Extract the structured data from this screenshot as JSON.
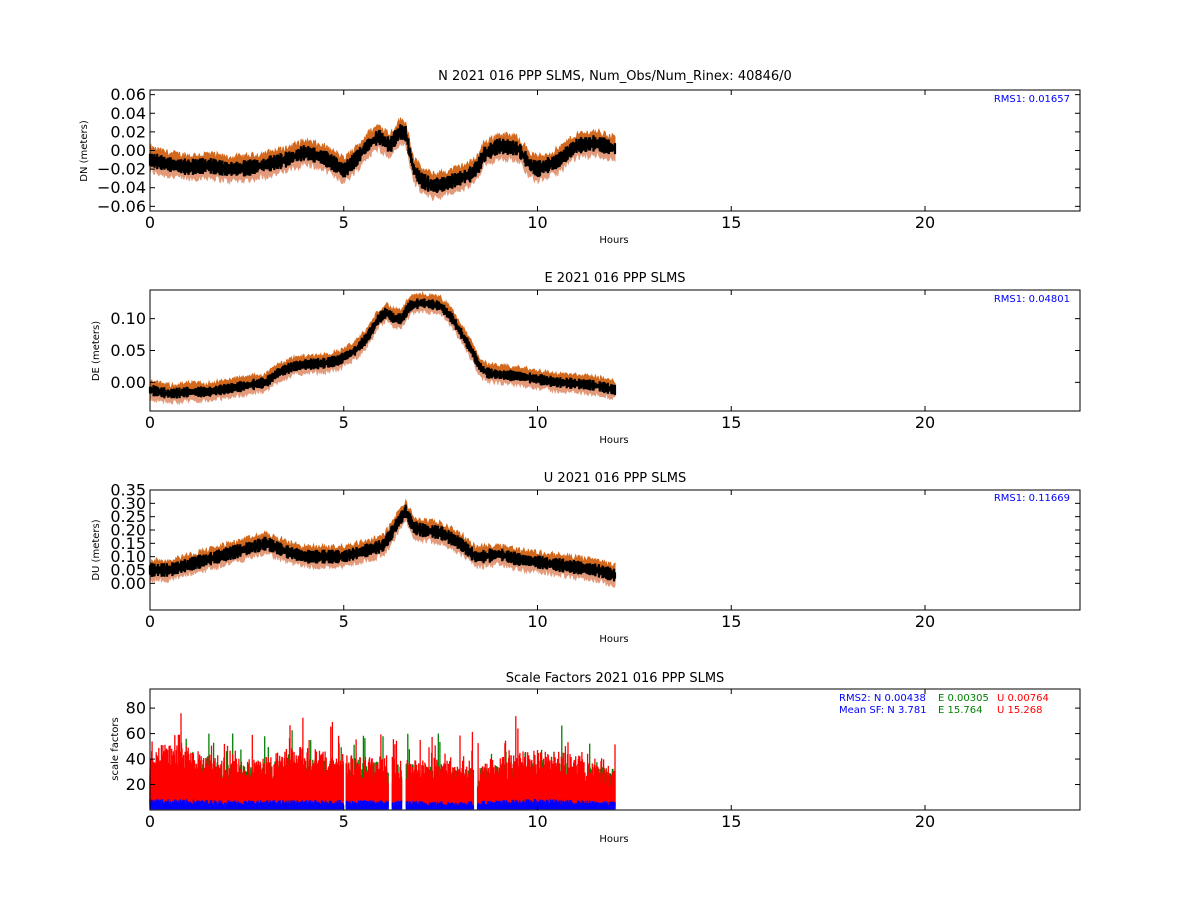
{
  "colors": {
    "upper_band": "#d2691e",
    "lower_band": "#e29a7a",
    "center": "#000000",
    "rms": "#0000ff",
    "sf_n": "#0000ff",
    "sf_e": "#008000",
    "sf_u": "#ff0000"
  },
  "chart_data": [
    {
      "type": "scatter",
      "title": "N 2021 016 PPP  SLMS, Num_Obs/Num_Rinex: 40846/0",
      "xlabel": "Hours",
      "ylabel": "DN (meters)",
      "xlim": [
        0,
        24
      ],
      "ylim": [
        -0.065,
        0.065
      ],
      "xticks": [
        0,
        5,
        10,
        15,
        20
      ],
      "yticks": [
        "0.06",
        "0.04",
        "0.02",
        "0.00",
        "−0.02",
        "−0.04",
        "−0.06"
      ],
      "ytick_values": [
        0.06,
        0.04,
        0.02,
        0.0,
        -0.02,
        -0.04,
        -0.06
      ],
      "annotation": "RMS1:  0.01657",
      "band": 0.012,
      "noise": 0.004,
      "series": [
        {
          "x": [
            0,
            0.5,
            1,
            1.5,
            2,
            2.5,
            3,
            3.5,
            4,
            4.5,
            4.9,
            5.0,
            5.3,
            5.6,
            5.9,
            6.2,
            6.3,
            6.45,
            6.6,
            6.8,
            7.0,
            7.3,
            7.6,
            8.0,
            8.3,
            8.5,
            8.6,
            9.0,
            9.5,
            9.8,
            10.0,
            10.5,
            11.0,
            11.5,
            12.0
          ],
          "y": [
            -0.01,
            -0.015,
            -0.018,
            -0.016,
            -0.02,
            -0.019,
            -0.015,
            -0.01,
            -0.002,
            -0.008,
            -0.018,
            -0.022,
            -0.01,
            0.005,
            0.015,
            0.005,
            0.012,
            0.02,
            0.018,
            -0.02,
            -0.032,
            -0.038,
            -0.036,
            -0.03,
            -0.025,
            -0.015,
            -0.005,
            0.005,
            0.002,
            -0.015,
            -0.02,
            -0.012,
            0.005,
            0.008,
            0.002
          ]
        }
      ]
    },
    {
      "type": "scatter",
      "title": "E 2021 016 PPP  SLMS",
      "xlabel": "Hours",
      "ylabel": "DE (meters)",
      "xlim": [
        0,
        24
      ],
      "ylim": [
        -0.045,
        0.145
      ],
      "xticks": [
        0,
        5,
        10,
        15,
        20
      ],
      "yticks": [
        "0.10",
        "0.05",
        "0.00"
      ],
      "ytick_values": [
        0.1,
        0.05,
        0.0
      ],
      "annotation": "RMS1:  0.04801",
      "band": 0.013,
      "noise": 0.004,
      "series": [
        {
          "x": [
            0,
            0.5,
            1,
            1.5,
            2,
            2.5,
            3,
            3.3,
            3.7,
            4,
            4.5,
            4.9,
            5.0,
            5.3,
            5.6,
            5.9,
            6.1,
            6.3,
            6.5,
            6.7,
            7.0,
            7.5,
            7.8,
            8.0,
            8.3,
            8.5,
            8.7,
            9.0,
            9.5,
            10.0,
            10.5,
            11.0,
            11.5,
            12.0
          ],
          "y": [
            -0.012,
            -0.018,
            -0.015,
            -0.015,
            -0.01,
            -0.005,
            0.0,
            0.015,
            0.025,
            0.028,
            0.03,
            0.035,
            0.04,
            0.05,
            0.07,
            0.1,
            0.11,
            0.1,
            0.1,
            0.12,
            0.125,
            0.12,
            0.1,
            0.08,
            0.05,
            0.025,
            0.015,
            0.012,
            0.01,
            0.005,
            0.0,
            -0.002,
            -0.005,
            -0.012
          ]
        }
      ]
    },
    {
      "type": "scatter",
      "title": "U 2021 016 PPP  SLMS",
      "xlabel": "Hours",
      "ylabel": "DU (meters)",
      "xlim": [
        0,
        24
      ],
      "ylim": [
        -0.1,
        0.35
      ],
      "xticks": [
        0,
        5,
        10,
        15,
        20
      ],
      "yticks": [
        "0.35",
        "0.30",
        "0.25",
        "0.20",
        "0.15",
        "0.10",
        "0.05",
        "0.00"
      ],
      "ytick_values": [
        0.35,
        0.3,
        0.25,
        0.2,
        0.15,
        0.1,
        0.05,
        0.0
      ],
      "annotation": "RMS1:  0.11669",
      "band": 0.035,
      "noise": 0.012,
      "series": [
        {
          "x": [
            0,
            0.5,
            1,
            1.5,
            2,
            2.5,
            3,
            3.5,
            4,
            4.5,
            4.9,
            5.0,
            5.5,
            6.0,
            6.2,
            6.4,
            6.6,
            6.8,
            7.0,
            7.5,
            8.0,
            8.4,
            8.6,
            9.0,
            9.5,
            10.0,
            10.5,
            11.0,
            11.5,
            12.0
          ],
          "y": [
            0.05,
            0.05,
            0.07,
            0.09,
            0.11,
            0.13,
            0.15,
            0.12,
            0.1,
            0.1,
            0.1,
            0.1,
            0.12,
            0.14,
            0.18,
            0.23,
            0.27,
            0.21,
            0.2,
            0.19,
            0.15,
            0.1,
            0.1,
            0.11,
            0.09,
            0.08,
            0.07,
            0.06,
            0.05,
            0.03
          ]
        }
      ]
    },
    {
      "type": "scatter",
      "title": "Scale Factors 2021 016 PPP  SLMS",
      "xlabel": "Hours",
      "ylabel": "scale factors",
      "xlim": [
        0,
        24
      ],
      "ylim": [
        0,
        95
      ],
      "xticks": [
        0,
        5,
        10,
        15,
        20
      ],
      "yticks": [
        "80",
        "60",
        "40",
        "20"
      ],
      "ytick_values": [
        80,
        60,
        40,
        20
      ],
      "annotation_rms2_label": "RMS2: N  0.00438",
      "annotation_rms2_e": "E  0.00305",
      "annotation_rms2_u": "U  0.00764",
      "annotation_sf_label": "Mean SF: N   3.781",
      "annotation_sf_e": "E  15.764",
      "annotation_sf_u": "U  15.268",
      "series": [
        {
          "x": [
            0,
            0.5,
            1,
            1.5,
            2,
            2.5,
            3,
            3.5,
            4,
            4.5,
            5,
            5.5,
            6,
            6.5,
            7,
            7.5,
            8,
            8.5,
            9,
            9.5,
            10,
            10.5,
            11,
            11.5,
            12
          ],
          "y": [
            25,
            32,
            28,
            22,
            20,
            18,
            20,
            26,
            28,
            24,
            22,
            20,
            22,
            18,
            18,
            20,
            14,
            14,
            22,
            24,
            26,
            24,
            22,
            20,
            16
          ]
        },
        {
          "x": [
            0,
            2,
            4,
            6,
            8,
            10,
            12
          ],
          "y": [
            20,
            18,
            22,
            20,
            15,
            22,
            15
          ]
        },
        {
          "x": [
            0,
            2,
            4,
            6,
            8,
            10,
            12
          ],
          "y": [
            6,
            5,
            5,
            5,
            4,
            6,
            4
          ]
        }
      ],
      "gaps": [
        [
          5.0,
          5.06
        ],
        [
          6.15,
          6.25
        ],
        [
          6.5,
          6.6
        ],
        [
          8.35,
          8.45
        ]
      ]
    }
  ]
}
